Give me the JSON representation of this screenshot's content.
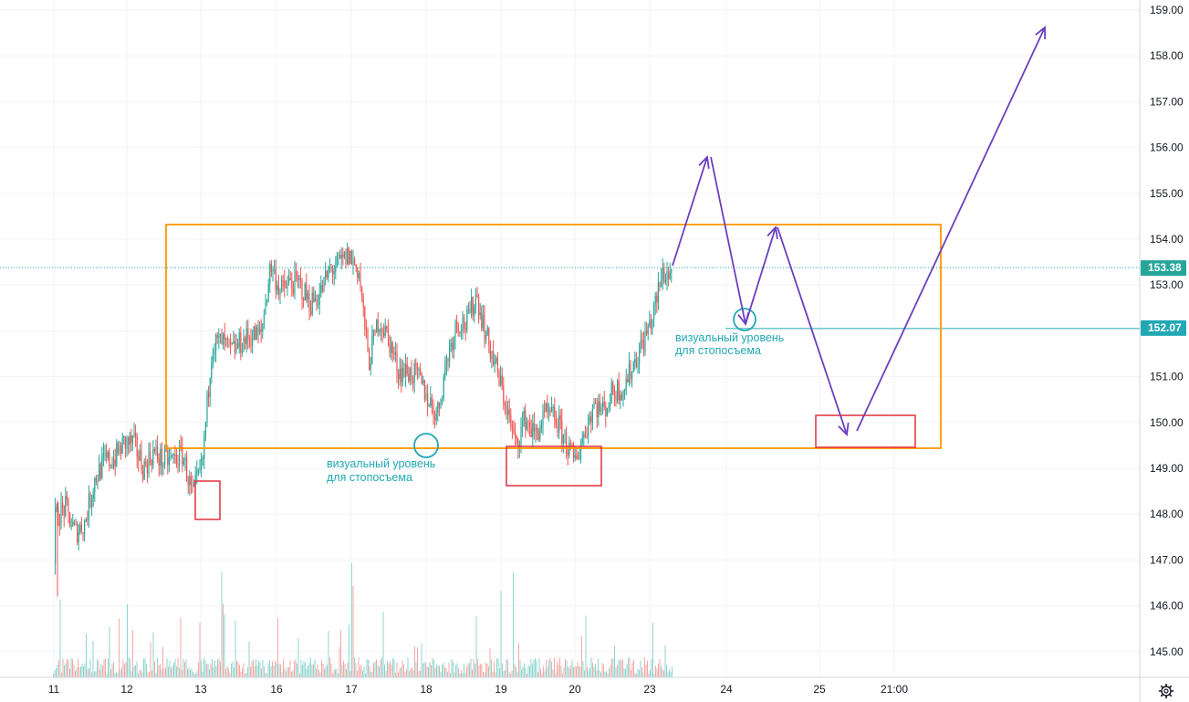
{
  "chart_data": {
    "type": "candlestick",
    "y_axis": {
      "ticks": [
        "145.00",
        "146.00",
        "147.00",
        "148.00",
        "149.00",
        "150.00",
        "151.00",
        "152.00",
        "153.00",
        "154.00",
        "155.00",
        "156.00",
        "157.00",
        "158.00",
        "159.00"
      ],
      "range": [
        144.6,
        159.2
      ]
    },
    "x_axis": {
      "ticks": [
        "11",
        "12",
        "13",
        "16",
        "17",
        "18",
        "19",
        "20",
        "23",
        "24",
        "25",
        "21:00"
      ]
    },
    "last_price": "153.38",
    "level_price": "152.07",
    "price_path": [
      [
        147.6,
        148.2
      ],
      [
        148.0,
        148.3
      ],
      [
        147.8,
        147.4
      ],
      [
        147.6,
        148.0
      ],
      [
        148.6,
        148.9
      ],
      [
        149.0,
        149.3
      ],
      [
        149.4,
        149.0
      ],
      [
        149.3,
        149.8
      ],
      [
        149.9,
        149.2
      ],
      [
        149.1,
        148.9
      ],
      [
        149.2,
        149.5
      ],
      [
        149.3,
        149.0
      ],
      [
        149.1,
        149.3
      ],
      [
        149.2,
        149.4
      ],
      [
        148.3,
        148.5
      ],
      [
        148.6,
        149.5
      ],
      [
        151.0,
        152.4
      ],
      [
        152.0,
        151.5
      ],
      [
        151.7,
        151.4
      ],
      [
        151.6,
        151.9
      ],
      [
        151.8,
        152.0
      ],
      [
        152.1,
        151.7
      ],
      [
        153.6,
        153.3
      ],
      [
        153.0,
        152.7
      ],
      [
        152.9,
        153.2
      ],
      [
        153.4,
        152.6
      ],
      [
        152.8,
        152.4
      ],
      [
        152.6,
        153.0
      ],
      [
        153.2,
        153.4
      ],
      [
        153.3,
        153.6
      ],
      [
        153.5,
        153.8
      ],
      [
        153.7,
        152.9
      ],
      [
        151.6,
        151.0
      ],
      [
        152.0,
        152.5
      ],
      [
        152.4,
        151.3
      ],
      [
        151.5,
        150.8
      ],
      [
        151.0,
        151.2
      ],
      [
        151.2,
        150.8
      ],
      [
        150.9,
        150.2
      ],
      [
        150.4,
        149.9
      ],
      [
        151.2,
        151.6
      ],
      [
        152.0,
        152.4
      ],
      [
        152.5,
        151.8
      ],
      [
        152.6,
        153.0
      ],
      [
        152.2,
        151.6
      ],
      [
        151.5,
        150.9
      ],
      [
        150.6,
        150.2
      ],
      [
        149.7,
        149.3
      ],
      [
        150.2,
        150.0
      ],
      [
        149.8,
        149.6
      ],
      [
        150.0,
        150.3
      ],
      [
        150.2,
        150.0
      ],
      [
        149.8,
        149.5
      ],
      [
        149.3,
        149.0
      ],
      [
        149.6,
        149.9
      ],
      [
        150.2,
        150.6
      ],
      [
        150.4,
        150.1
      ],
      [
        150.6,
        150.8
      ],
      [
        150.6,
        150.9
      ],
      [
        151.1,
        151.4
      ],
      [
        151.6,
        151.9
      ],
      [
        152.0,
        152.6
      ],
      [
        153.1,
        153.4
      ],
      [
        153.2,
        153.3
      ]
    ],
    "annotations": {
      "level_label_1_line1": "визуальный уровень",
      "level_label_1_line2": "для стопосъема",
      "level_label_2_line1": "визуальный уровень",
      "level_label_2_line2": "для стопосъема"
    },
    "colors": {
      "up": "#26a69a",
      "down": "#ef5350",
      "range_box": "#ff9800",
      "zone_box": "#e0303a",
      "projection": "#6a3fbf",
      "level_line": "#22a8b4",
      "price_badge": "#26a69a",
      "level_badge": "#22a8b4"
    }
  },
  "icons": {
    "settings": "gear-icon"
  }
}
